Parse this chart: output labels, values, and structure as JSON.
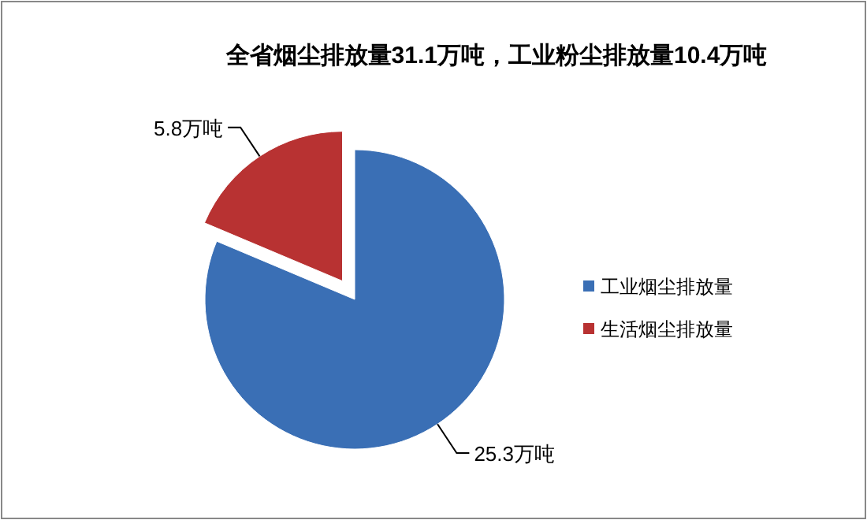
{
  "chart_data": {
    "type": "pie",
    "title": "全省烟尘排放量31.1万吨，工业粉尘排放量10.4万吨",
    "categories": [
      "工业烟尘排放量",
      "生活烟尘排放量"
    ],
    "values": [
      25.3,
      5.8
    ],
    "colors": [
      "#3a6fb5",
      "#b83232"
    ],
    "value_labels": [
      "25.3万吨",
      "5.8万吨"
    ],
    "legend": "right"
  }
}
